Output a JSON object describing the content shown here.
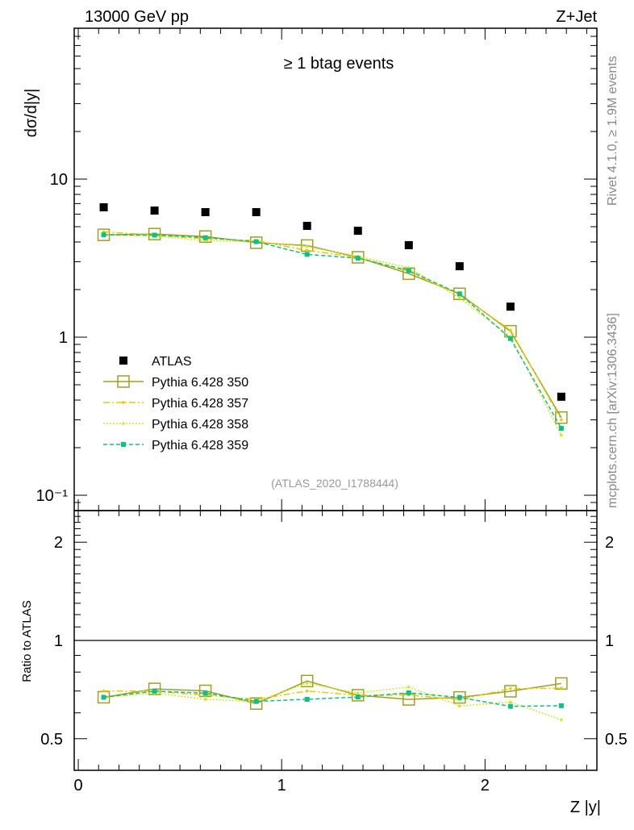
{
  "chart_data": [
    {
      "type": "scatter",
      "panel": "main",
      "title_left": "13000 GeV pp",
      "title_right": "Z+Jet",
      "annotation": "≥ 1 btag events",
      "analysis_label": "(ATLAS_2020_I1788444)",
      "side_label_top": "Rivet 4.1.0, ≥ 1.9M events",
      "side_label_bottom": "mcplots.cern.ch [arXiv:1306.3436]",
      "ylabel": "dσ/d|y|",
      "yscale": "log",
      "ylim": [
        0.08,
        90
      ],
      "ytick_labels": [
        {
          "v": 10,
          "t": "10"
        },
        {
          "v": 1,
          "t": "1"
        },
        {
          "v": 0.1,
          "t": "10⁻¹"
        }
      ],
      "xlim": [
        -0.02,
        2.55
      ],
      "x": [
        0.125,
        0.375,
        0.625,
        0.875,
        1.125,
        1.375,
        1.625,
        1.875,
        2.125,
        2.375
      ],
      "series": [
        {
          "name": "ATLAS",
          "color": "#000000",
          "marker": "filled-square",
          "values": [
            6.63,
            6.32,
            6.18,
            6.18,
            5.06,
            4.71,
            3.82,
            2.81,
            1.56,
            0.42
          ]
        },
        {
          "name": "Pythia 6.428 350",
          "color": "#a0a020",
          "marker": "open-square",
          "dash": "",
          "values": [
            4.44,
            4.49,
            4.33,
            3.96,
            3.8,
            3.2,
            2.52,
            1.88,
            1.09,
            0.31
          ]
        },
        {
          "name": "Pythia 6.428 357",
          "color": "#e8c800",
          "marker": "dot",
          "dash": "8,3,2,3",
          "values": [
            4.64,
            4.42,
            4.2,
            4.08,
            3.54,
            3.2,
            2.6,
            1.85,
            1.11,
            0.3
          ]
        },
        {
          "name": "Pythia 6.428 358",
          "color": "#d4e81c",
          "marker": "dot",
          "dash": "2,2",
          "values": [
            4.44,
            4.36,
            4.08,
            4.02,
            3.74,
            3.25,
            2.75,
            1.77,
            1.01,
            0.24
          ]
        },
        {
          "name": "Pythia 6.428 359",
          "color": "#10c080",
          "marker": "small-square",
          "dash": "5,3",
          "values": [
            4.44,
            4.42,
            4.26,
            4.02,
            3.34,
            3.16,
            2.64,
            1.88,
            0.98,
            0.265
          ]
        }
      ]
    },
    {
      "type": "line",
      "panel": "ratio",
      "ylabel": "Ratio to ATLAS",
      "xlabel": "Z |y|",
      "yscale": "log",
      "ylim": [
        0.4,
        2.5
      ],
      "ytick_labels": [
        {
          "v": 2,
          "t": "2"
        },
        {
          "v": 1,
          "t": "1"
        },
        {
          "v": 0.5,
          "t": "0.5"
        }
      ],
      "xtick_labels": [
        {
          "v": 0,
          "t": "0"
        },
        {
          "v": 1,
          "t": "1"
        },
        {
          "v": 2,
          "t": "2"
        }
      ],
      "reference": 1
    }
  ]
}
